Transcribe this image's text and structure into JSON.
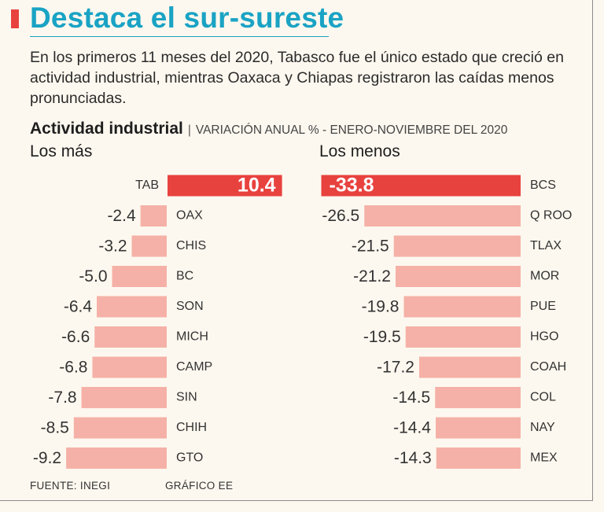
{
  "header": {
    "title": "Destaca el sur-sureste",
    "subtitle": "En los primeros 11 meses del 2020, Tabasco fue el único estado que creció en actividad industrial, mientras Oaxaca y Chiapas registraron las caídas menos pronunciadas."
  },
  "chart_heading": {
    "main": "Actividad industrial",
    "separator": "|",
    "detail": "VARIACIÓN ANUAL % - ENERO-NOVIEMBRE DEL 2020"
  },
  "chart_data": [
    {
      "type": "bar",
      "orientation": "horizontal",
      "title": "Los más",
      "categories": [
        "TAB",
        "OAX",
        "CHIS",
        "BC",
        "SON",
        "MICH",
        "CAMP",
        "SIN",
        "CHIH",
        "GTO"
      ],
      "values": [
        10.4,
        -2.4,
        -3.2,
        -5.0,
        -6.4,
        -6.6,
        -6.8,
        -7.8,
        -8.5,
        -9.2
      ],
      "value_labels": [
        "10.4",
        "-2.4",
        "-3.2",
        "-5.0",
        "-6.4",
        "-6.6",
        "-6.8",
        "-7.8",
        "-8.5",
        "-9.2"
      ],
      "highlight_category": "TAB"
    },
    {
      "type": "bar",
      "orientation": "horizontal",
      "title": "Los menos",
      "categories": [
        "BCS",
        "Q ROO",
        "TLAX",
        "MOR",
        "PUE",
        "HGO",
        "COAH",
        "COL",
        "NAY",
        "MEX"
      ],
      "values": [
        -33.8,
        -26.5,
        -21.5,
        -21.2,
        -19.8,
        -19.5,
        -17.2,
        -14.5,
        -14.4,
        -14.3
      ],
      "value_labels": [
        "-33.8",
        "-26.5",
        "-21.5",
        "-21.2",
        "-19.8",
        "-19.5",
        "-17.2",
        "-14.5",
        "-14.4",
        "-14.3"
      ],
      "highlight_category": "BCS"
    }
  ],
  "colors": {
    "highlight_bar": "#e8423f",
    "bar": "#f5b1a7",
    "title": "#1aa3c4",
    "accent": "#e8423f",
    "background": "#fdf8ef"
  },
  "footer": {
    "source": "FUENTE: INEGI",
    "credit": "GRÁFICO EE"
  }
}
